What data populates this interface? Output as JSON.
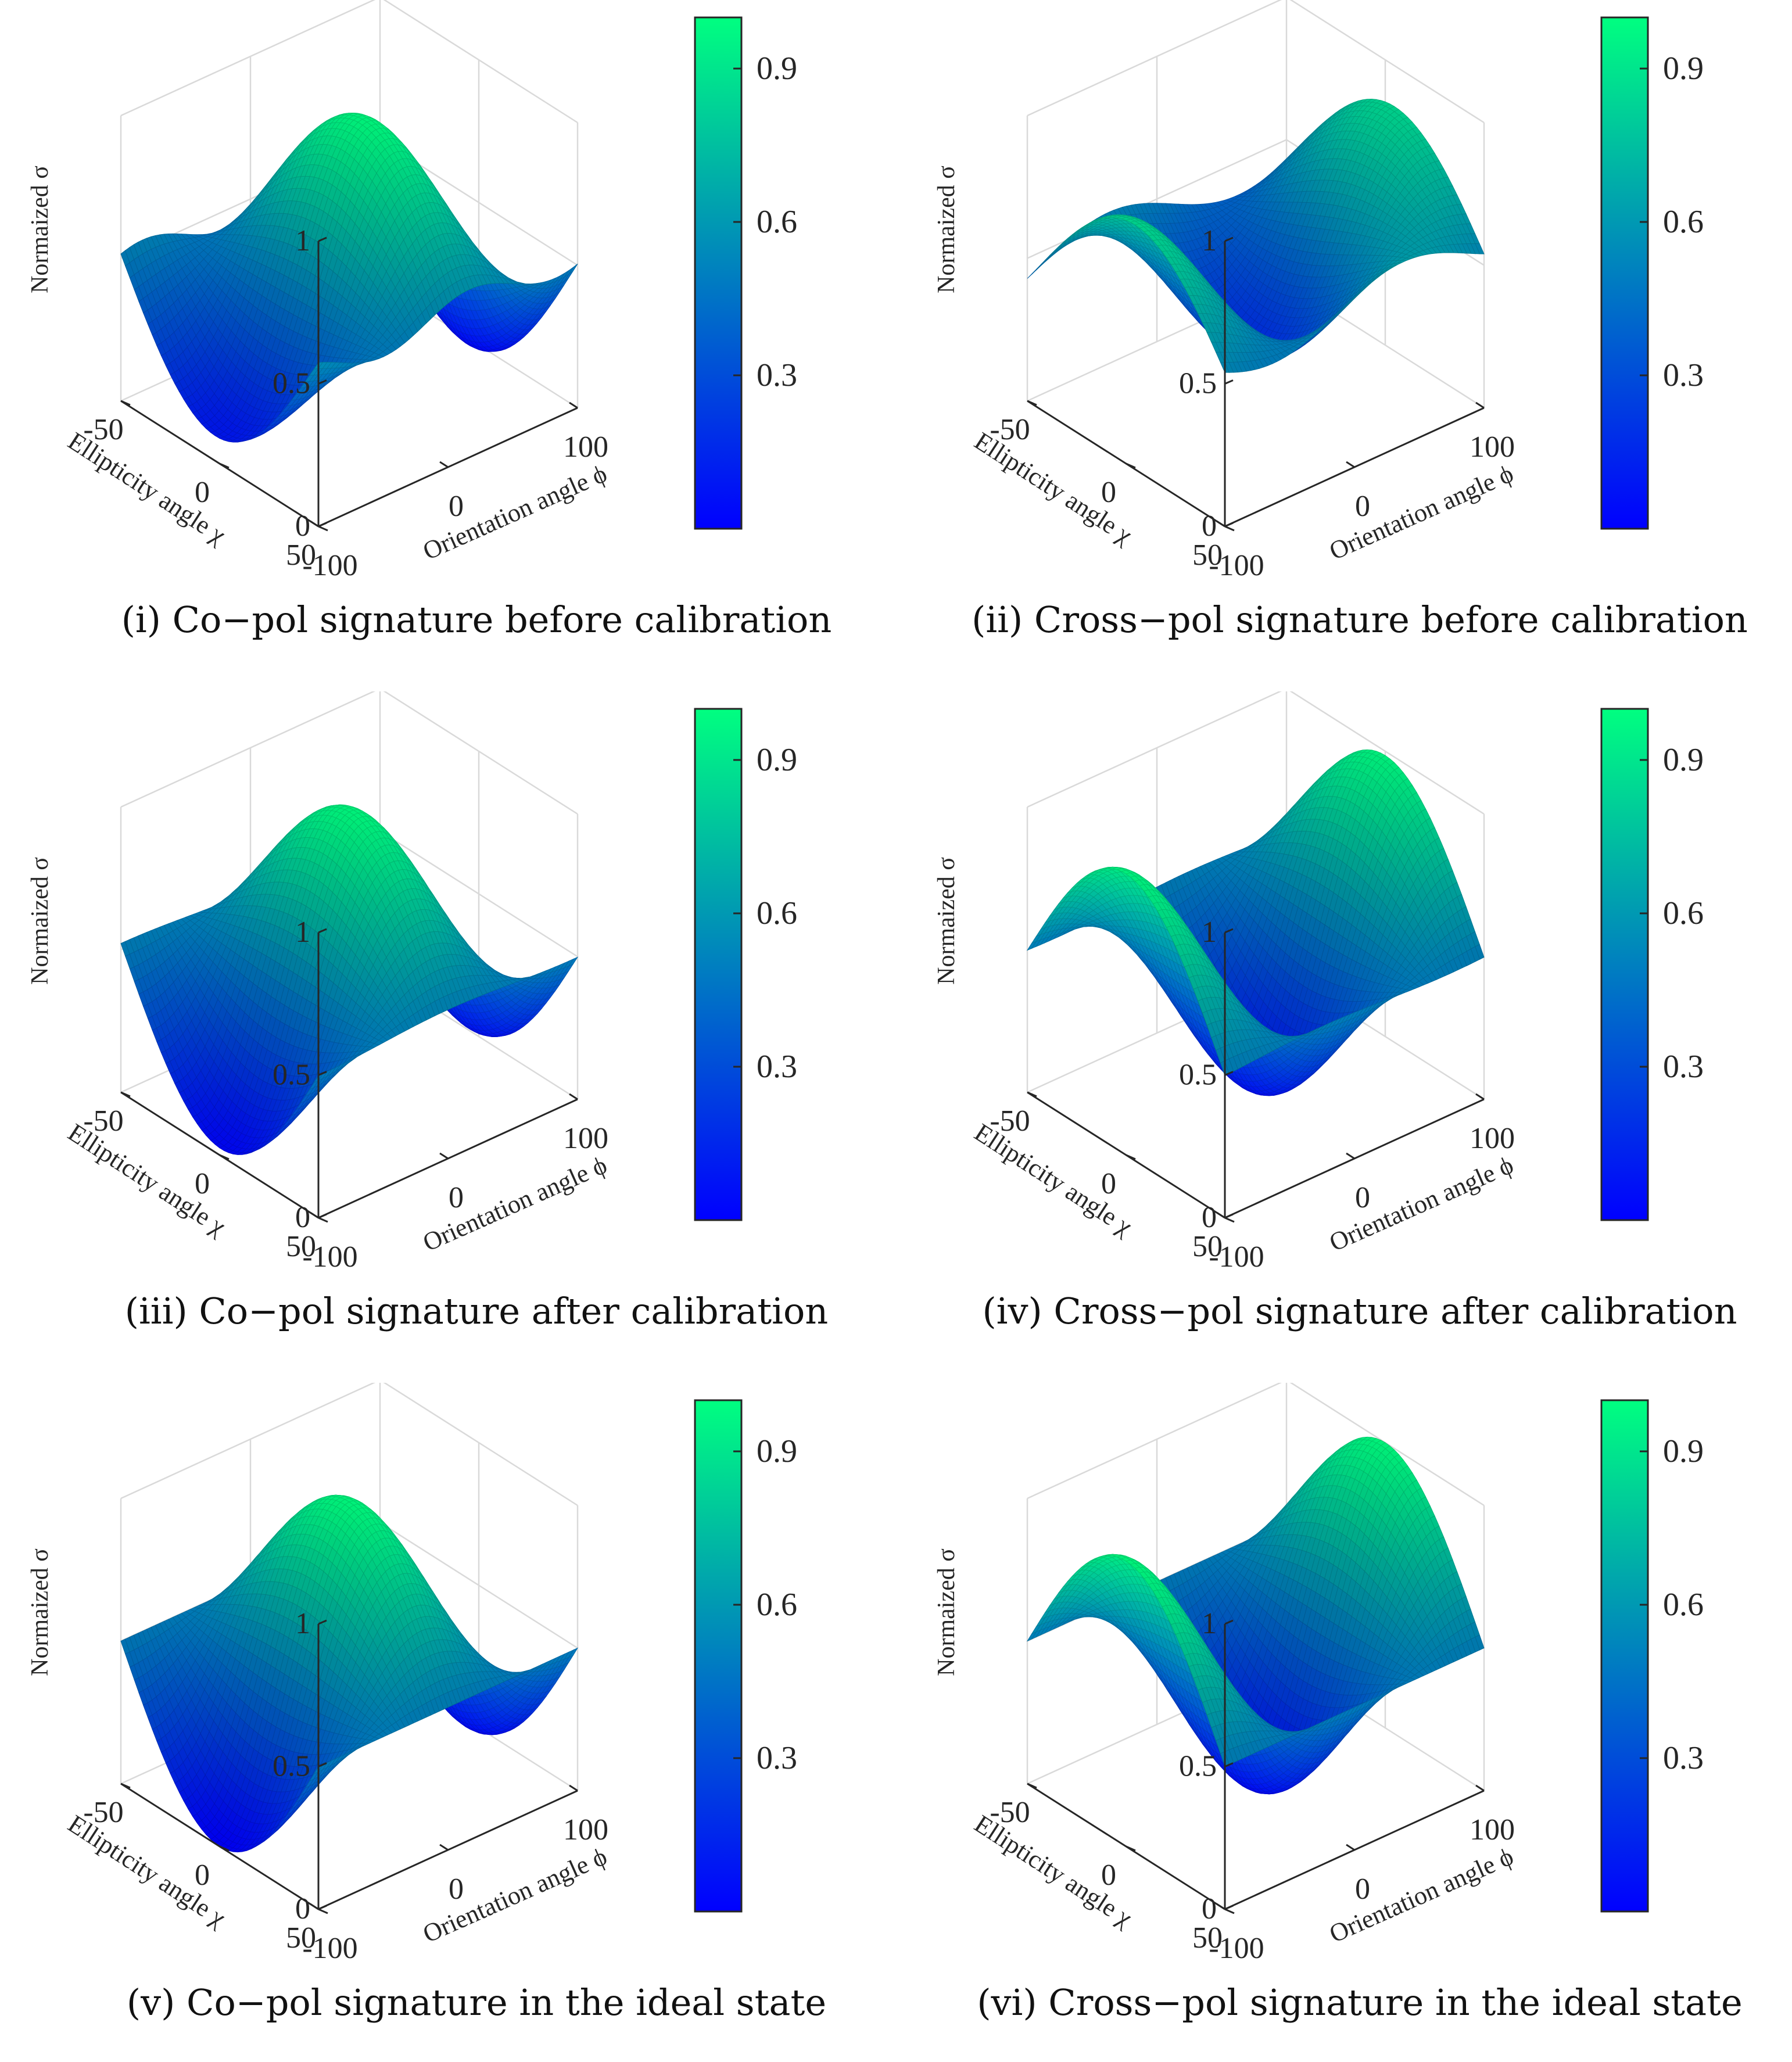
{
  "figure": {
    "colormap": {
      "low": "#0000ff",
      "high": "#00ff80"
    },
    "axis_labels": {
      "z": "Normaized σ",
      "x": "Orientation angle ϕ",
      "y": "Ellipticity angle χ"
    }
  },
  "chart_data": [
    {
      "id": "i",
      "type": "surface",
      "caption": "(i) Co−pol signature before calibration",
      "signature": "co-pol",
      "state": "before calibration",
      "xlim": [
        -90,
        90
      ],
      "ylim": [
        -45,
        45
      ],
      "zlim": [
        0,
        1
      ],
      "x_ticks": [
        "-100",
        "0",
        "100"
      ],
      "y_ticks": [
        "50",
        "0",
        "-50"
      ],
      "z_ticks": [
        "0",
        "0.5",
        "1"
      ],
      "colorbar_ticks": [
        "0.9",
        "0.6",
        "0.3"
      ],
      "colorbar_range": [
        0,
        1
      ],
      "peak": 1.0,
      "floor": 0.02
    },
    {
      "id": "ii",
      "type": "surface",
      "caption": "(ii) Cross−pol signature before calibration",
      "signature": "cross-pol",
      "state": "before calibration",
      "xlim": [
        -90,
        90
      ],
      "ylim": [
        -45,
        45
      ],
      "zlim": [
        0,
        1
      ],
      "x_ticks": [
        "-100",
        "0",
        "100"
      ],
      "y_ticks": [
        "50",
        "0",
        "-50"
      ],
      "z_ticks": [
        "0",
        "0.5",
        "1"
      ],
      "colorbar_ticks": [
        "0.9",
        "0.6",
        "0.3"
      ],
      "colorbar_range": [
        0,
        1
      ],
      "peak": 1.0,
      "floor": 0.08
    },
    {
      "id": "iii",
      "type": "surface",
      "caption": "(iii) Co−pol signature after calibration",
      "signature": "co-pol",
      "state": "after calibration",
      "xlim": [
        -90,
        90
      ],
      "ylim": [
        -45,
        45
      ],
      "zlim": [
        0,
        1
      ],
      "x_ticks": [
        "-100",
        "0",
        "100"
      ],
      "y_ticks": [
        "50",
        "0",
        "-50"
      ],
      "z_ticks": [
        "0",
        "0.5",
        "1"
      ],
      "colorbar_ticks": [
        "0.9",
        "0.6",
        "0.3"
      ],
      "colorbar_range": [
        0,
        1
      ],
      "peak": 1.0,
      "floor": 0.02
    },
    {
      "id": "iv",
      "type": "surface",
      "caption": "(iv) Cross−pol signature after calibration",
      "signature": "cross-pol",
      "state": "after calibration",
      "xlim": [
        -90,
        90
      ],
      "ylim": [
        -45,
        45
      ],
      "zlim": [
        0,
        1
      ],
      "x_ticks": [
        "-100",
        "0",
        "100"
      ],
      "y_ticks": [
        "50",
        "0",
        "-50"
      ],
      "z_ticks": [
        "0",
        "0.5",
        "1"
      ],
      "colorbar_ticks": [
        "0.9",
        "0.6",
        "0.3"
      ],
      "colorbar_range": [
        0,
        1
      ],
      "peak": 1.0,
      "floor": 0.01
    },
    {
      "id": "v",
      "type": "surface",
      "caption": "(v) Co−pol signature in the ideal state",
      "signature": "co-pol",
      "state": "ideal",
      "xlim": [
        -90,
        90
      ],
      "ylim": [
        -45,
        45
      ],
      "zlim": [
        0,
        1
      ],
      "x_ticks": [
        "-100",
        "0",
        "100"
      ],
      "y_ticks": [
        "50",
        "0",
        "-50"
      ],
      "z_ticks": [
        "0",
        "0.5",
        "1"
      ],
      "colorbar_ticks": [
        "0.9",
        "0.6",
        "0.3"
      ],
      "colorbar_range": [
        0,
        1
      ],
      "peak": 1.0,
      "floor": 0.0
    },
    {
      "id": "vi",
      "type": "surface",
      "caption": "(vi) Cross−pol signature in the ideal state",
      "signature": "cross-pol",
      "state": "ideal",
      "xlim": [
        -90,
        90
      ],
      "ylim": [
        -45,
        45
      ],
      "zlim": [
        0,
        1
      ],
      "x_ticks": [
        "-100",
        "0",
        "100"
      ],
      "y_ticks": [
        "50",
        "0",
        "-50"
      ],
      "z_ticks": [
        "0",
        "0.5",
        "1"
      ],
      "colorbar_ticks": [
        "0.9",
        "0.6",
        "0.3"
      ],
      "colorbar_range": [
        0,
        1
      ],
      "peak": 1.0,
      "floor": 0.0
    }
  ]
}
